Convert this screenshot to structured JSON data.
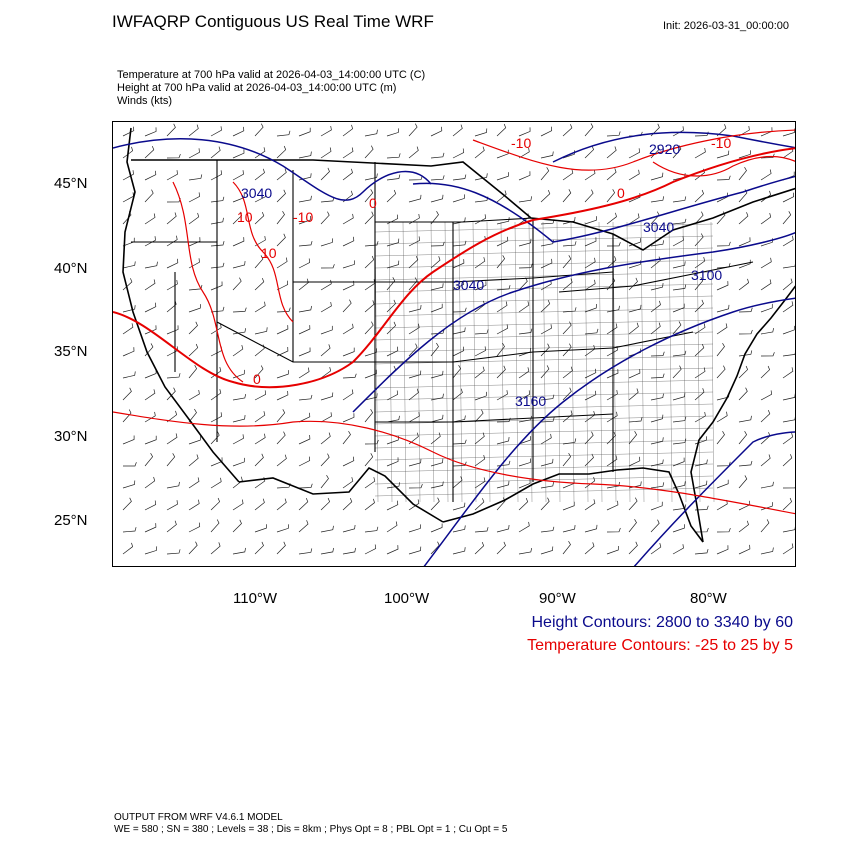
{
  "title": "IWFAQRP Contiguous US Real Time WRF",
  "init": "Init: 2026-03-31_00:00:00",
  "variables": [
    "Temperature at 700 hPa valid at 2026-04-03_14:00:00 UTC   (C)",
    "Height at 700 hPa valid at 2026-04-03_14:00:00 UTC   (m)",
    "Winds   (kts)"
  ],
  "map": {
    "lat_labels": [
      "45°N",
      "40°N",
      "35°N",
      "30°N",
      "25°N"
    ],
    "lon_labels": [
      "110°W",
      "100°W",
      "90°W",
      "80°W"
    ],
    "height_contour_labels": [
      "3040",
      "2920",
      "3040",
      "3040",
      "3100",
      "3160"
    ],
    "temperature_contour_labels": [
      "-10",
      "-10",
      "0",
      "10",
      "10",
      "-10",
      "0",
      "0"
    ],
    "colors": {
      "height_contours": "#0a0a8c",
      "temperature_contours": "#e60000",
      "boundaries": "#000000",
      "counties": "#333333"
    }
  },
  "legend": {
    "height": "Height Contours: 2800 to 3340 by 60",
    "temperature": "Temperature Contours: -25 to 25 by 5"
  },
  "footer": {
    "line1": "OUTPUT FROM WRF V4.6.1 MODEL",
    "line2": "WE = 580 ; SN = 380 ; Levels = 38 ; Dis = 8km ; Phys Opt = 8 ; PBL Opt = 1 ; Cu Opt = 5"
  }
}
